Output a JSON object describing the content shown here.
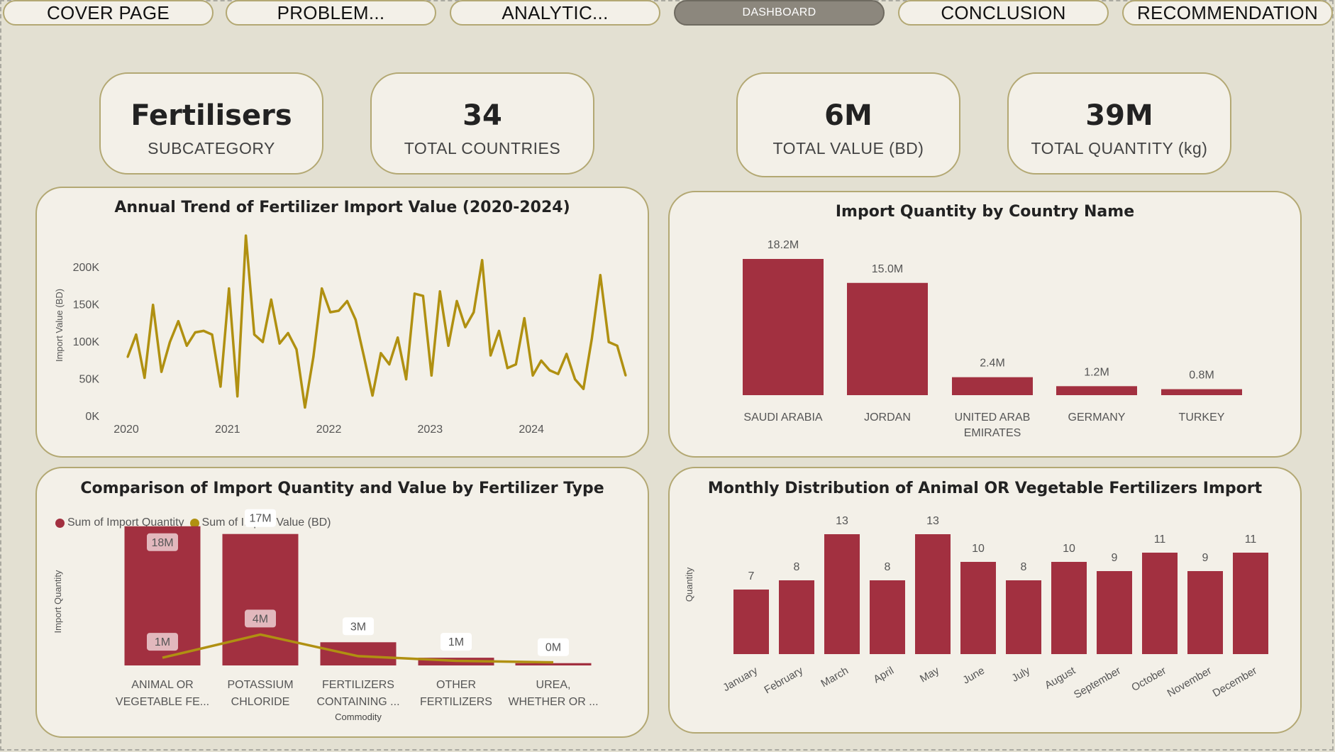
{
  "nav": {
    "tabs": [
      {
        "label": "COVER PAGE",
        "active": false
      },
      {
        "label": "PROBLEM...",
        "active": false
      },
      {
        "label": "ANALYTIC...",
        "active": false
      },
      {
        "label": "DASHBOARD",
        "active": true
      },
      {
        "label": "CONCLUSION",
        "active": false
      },
      {
        "label": "RECOMMENDATION",
        "active": false
      }
    ]
  },
  "kpis": [
    {
      "value": "Fertilisers",
      "label": "SUBCATEGORY"
    },
    {
      "value": "34",
      "label": "TOTAL COUNTRIES"
    },
    {
      "value": "6M",
      "label": "TOTAL VALUE (BD)"
    },
    {
      "value": "39M",
      "label": "TOTAL QUANTITY (kg)"
    }
  ],
  "colors": {
    "bar": "#a23040",
    "line": "#b09011",
    "panel": "#f3f0e8",
    "border": "#b3a873",
    "background": "#e3e0d2"
  },
  "chart_data": [
    {
      "type": "line",
      "title": "Annual Trend of Fertilizer Import Value (2020-2024)",
      "ylabel": "Import Value (BD)",
      "xlabel": "",
      "x_tick_labels": [
        "2020",
        "2021",
        "2022",
        "2023",
        "2024"
      ],
      "y_tick_labels": [
        "0K",
        "50K",
        "100K",
        "150K",
        "200K"
      ],
      "ylim": [
        0,
        245000
      ],
      "x_start": "2020-01",
      "values": [
        80000,
        110000,
        52000,
        150000,
        60000,
        100000,
        128000,
        95000,
        113000,
        115000,
        110000,
        40000,
        172000,
        27000,
        243000,
        110000,
        100000,
        157000,
        98000,
        112000,
        90000,
        12000,
        80000,
        172000,
        140000,
        142000,
        155000,
        130000,
        80000,
        28000,
        85000,
        70000,
        106000,
        50000,
        165000,
        162000,
        55000,
        168000,
        95000,
        155000,
        120000,
        140000,
        210000,
        82000,
        115000,
        65000,
        70000,
        132000,
        55000,
        75000,
        62000,
        57000,
        84000,
        50000,
        37000,
        105000,
        190000,
        100000,
        95000,
        55000
      ]
    },
    {
      "type": "bar",
      "title": "Import Quantity by Country Name",
      "categories": [
        "SAUDI ARABIA",
        "JORDAN",
        "UNITED ARAB EMIRATES",
        "GERMANY",
        "TURKEY"
      ],
      "values": [
        18200000,
        15000000,
        2400000,
        1200000,
        800000
      ],
      "data_labels": [
        "18.2M",
        "15.0M",
        "2.4M",
        "1.2M",
        "0.8M"
      ]
    },
    {
      "type": "bar",
      "title": "Comparison of Import Quantity and Value by Fertilizer Type",
      "xlabel": "Commodity",
      "ylabel": "Import Quantity",
      "categories": [
        "ANIMAL OR VEGETABLE FE...",
        "POTASSIUM CHLORIDE",
        "FERTILIZERS CONTAINING ...",
        "OTHER FERTILIZERS",
        "UREA, WHETHER OR ..."
      ],
      "series": [
        {
          "name": "Sum of Import Quantity",
          "type": "bar",
          "values": [
            18000000,
            17000000,
            3000000,
            1000000,
            300000
          ],
          "data_labels": [
            "18M",
            "17M",
            "3M",
            "1M",
            "0M"
          ]
        },
        {
          "name": "Sum of Import Value (BD)",
          "type": "line",
          "values": [
            1000000,
            4000000,
            1200000,
            600000,
            400000
          ],
          "data_labels": [
            "1M",
            "4M",
            "",
            "",
            ""
          ]
        }
      ],
      "ylim": [
        0,
        20000000
      ],
      "legend": "top-left"
    },
    {
      "type": "bar",
      "title": "Monthly Distribution of Animal OR Vegetable Fertilizers Import",
      "ylabel": "Quantity",
      "categories": [
        "January",
        "February",
        "March",
        "April",
        "May",
        "June",
        "July",
        "August",
        "September",
        "October",
        "November",
        "December"
      ],
      "values": [
        7,
        8,
        13,
        8,
        13,
        10,
        8,
        10,
        9,
        11,
        9,
        11
      ],
      "ylim": [
        0,
        14
      ]
    }
  ]
}
